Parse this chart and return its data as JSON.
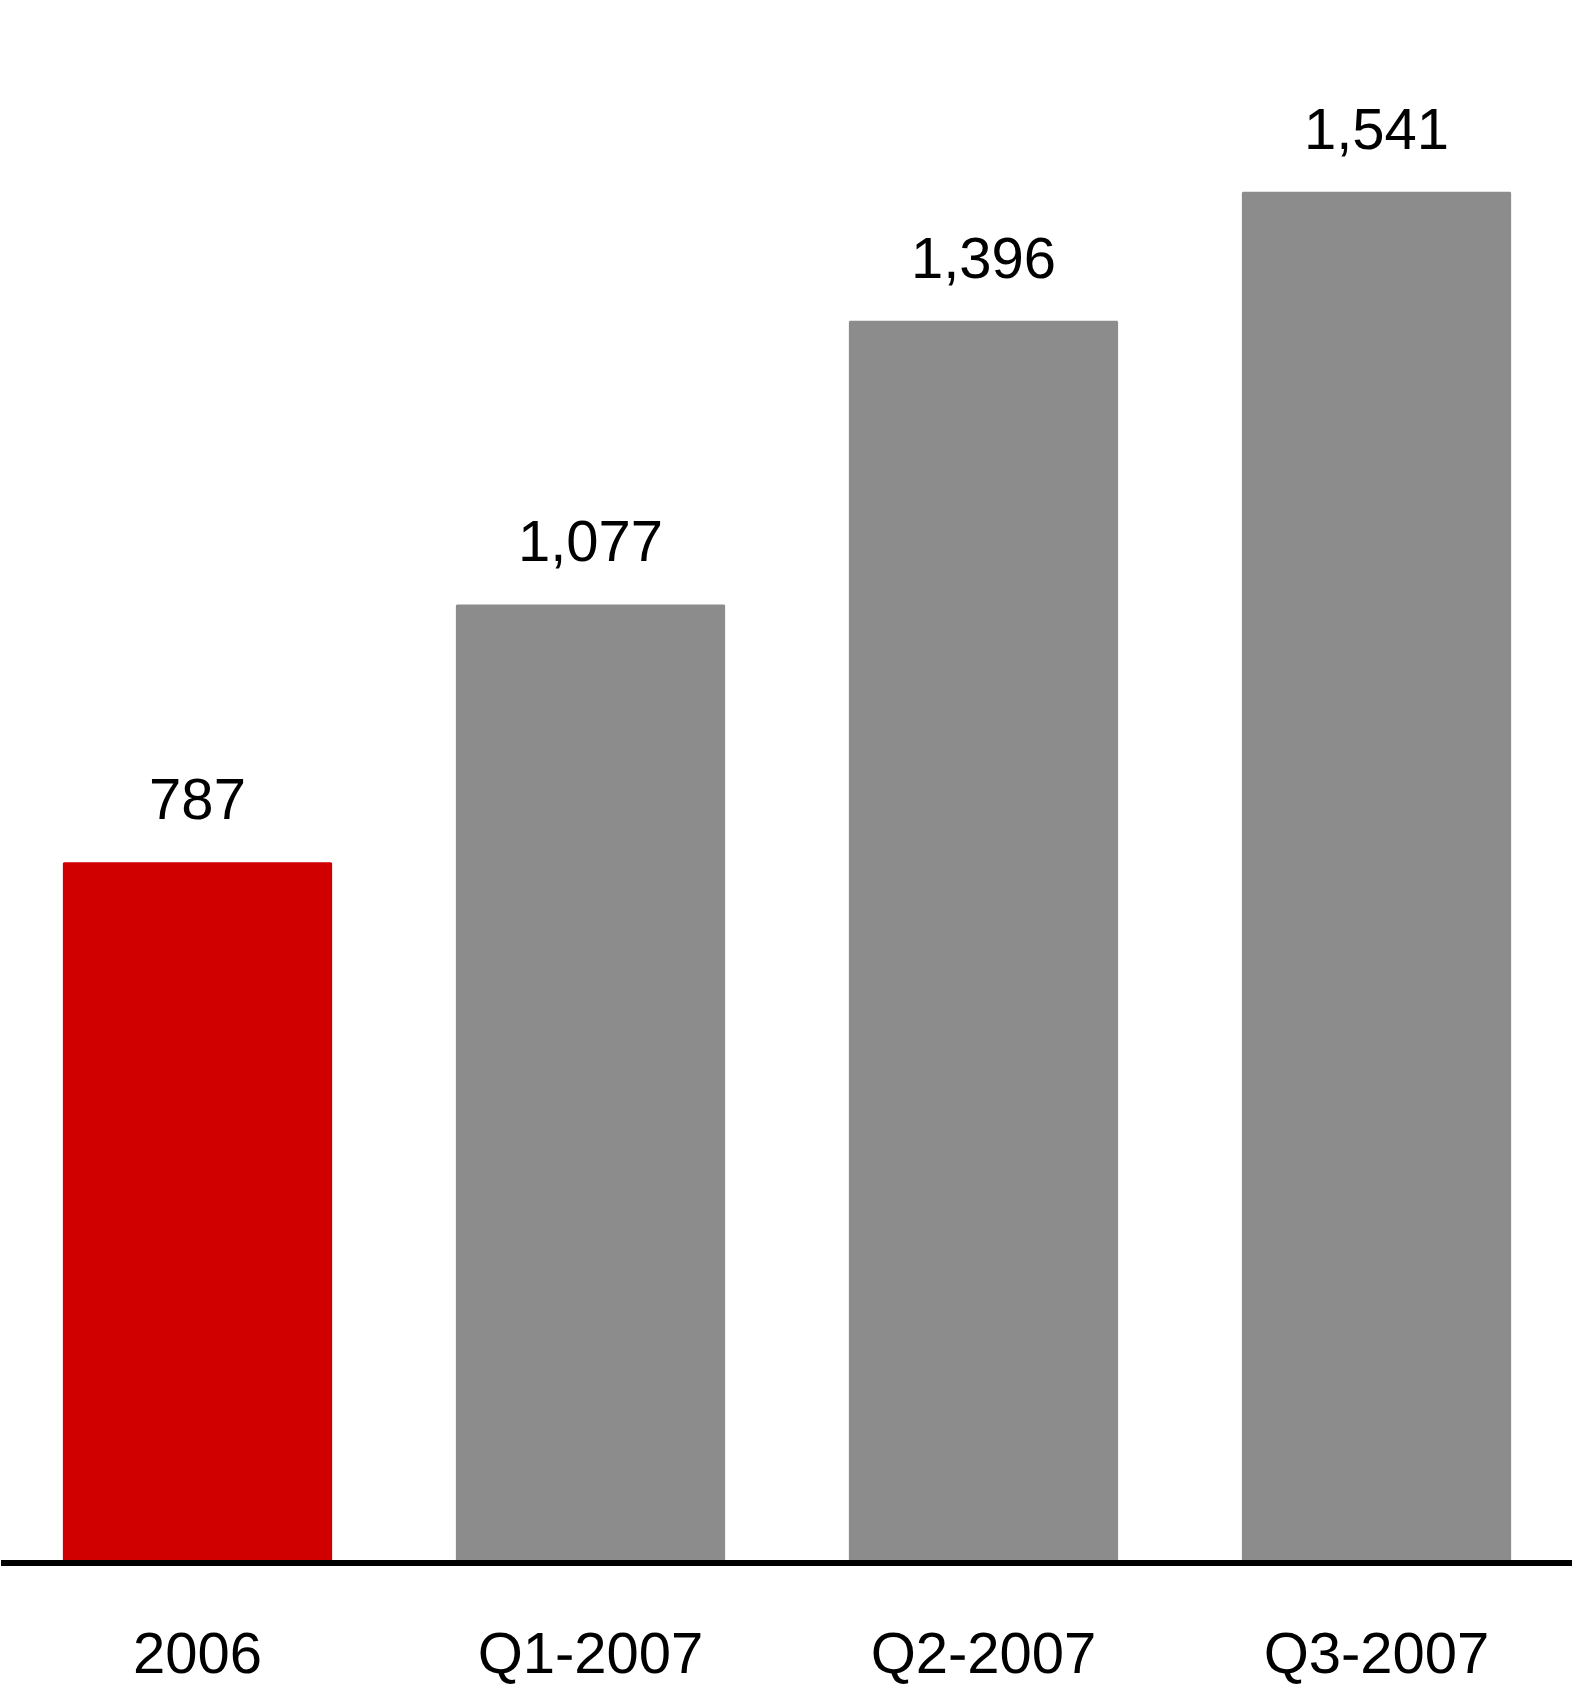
{
  "chart_data": {
    "type": "bar",
    "categories": [
      "2006",
      "Q1-2007",
      "Q2-2007",
      "Q3-2007"
    ],
    "values": [
      787,
      1077,
      1396,
      1541
    ],
    "colors": [
      "#d00000",
      "#8c8c8c",
      "#8c8c8c",
      "#8c8c8c"
    ],
    "value_labels": [
      "787",
      "1,077",
      "1,396",
      "1,541"
    ],
    "grid": false
  }
}
